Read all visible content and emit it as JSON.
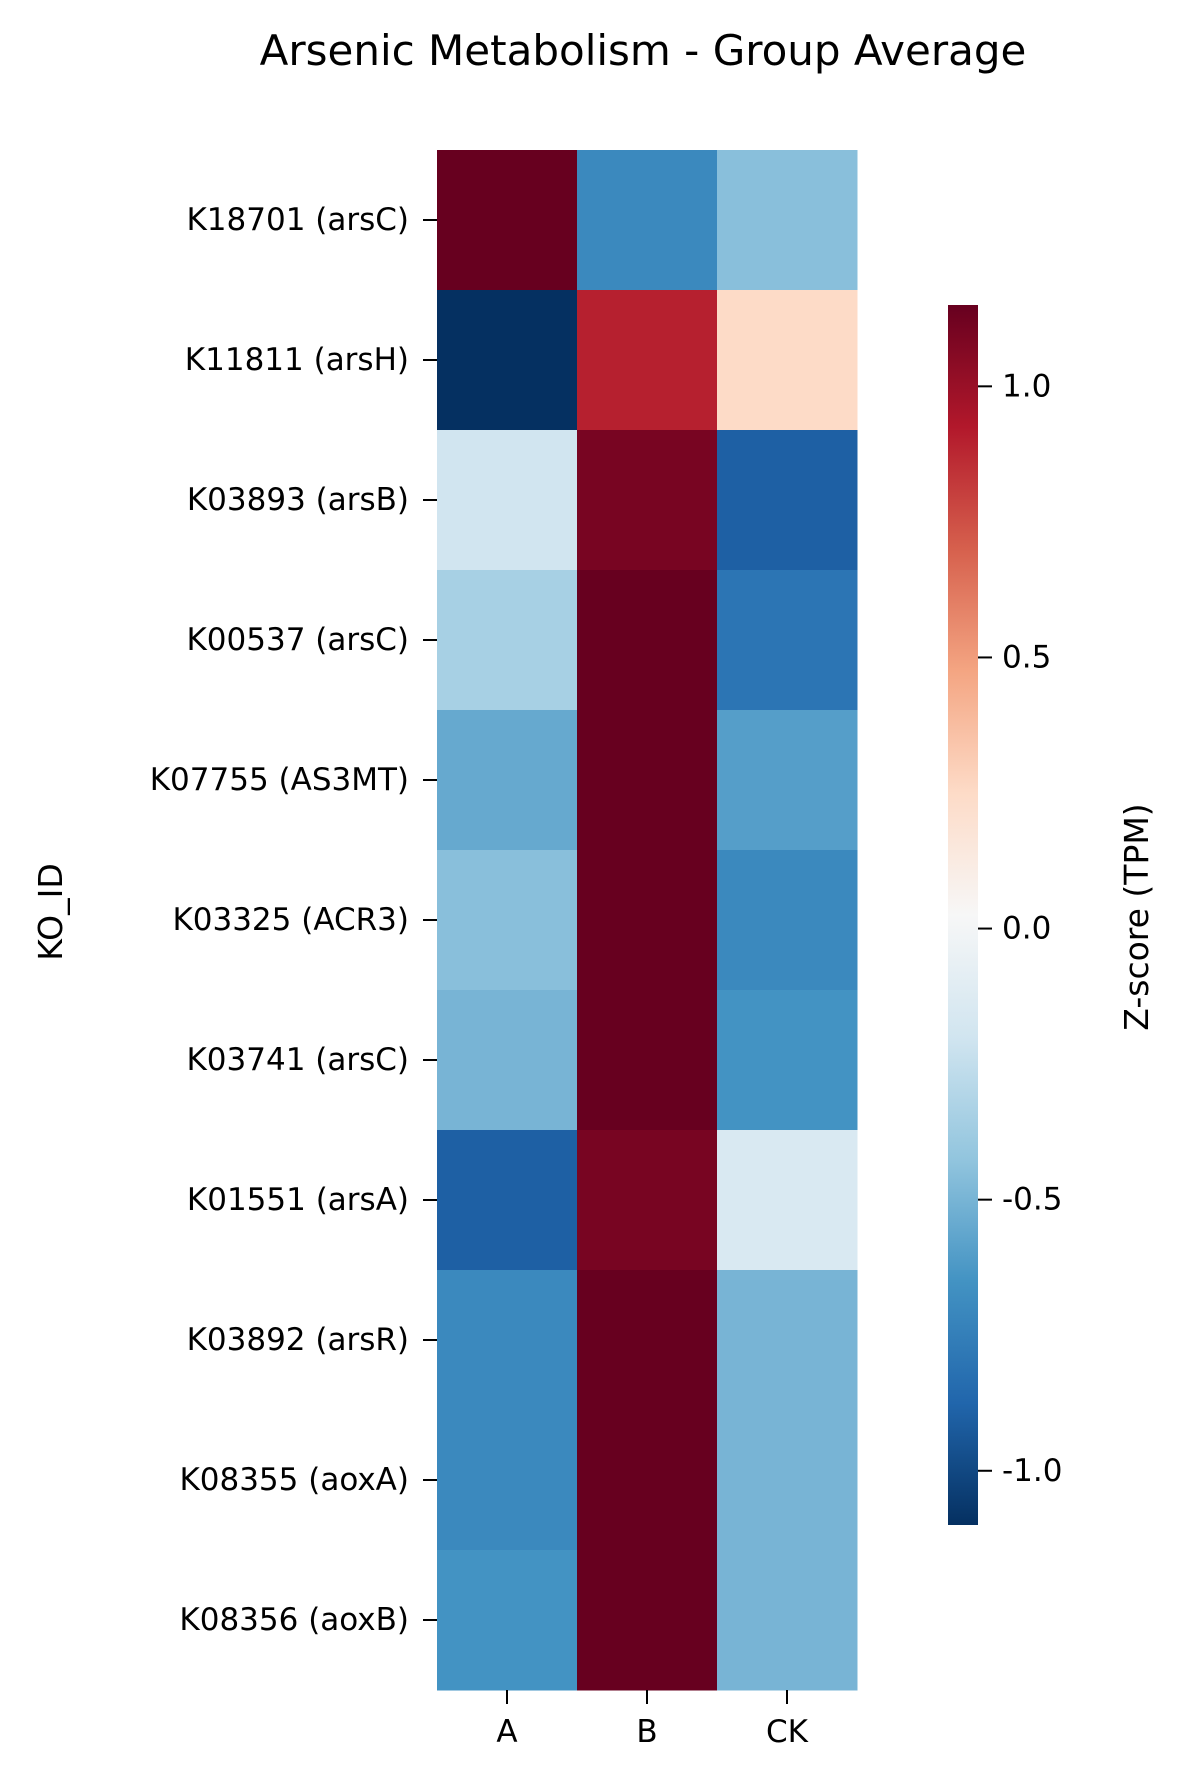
{
  "chart_data": {
    "type": "heatmap",
    "title": "Arsenic Metabolism - Group Average",
    "ylabel": "KO_ID",
    "xlabel": "",
    "columns": [
      "A",
      "B",
      "CK"
    ],
    "rows": [
      "K18701 (arsC)",
      "K11811 (arsH)",
      "K03893 (arsB)",
      "K00537 (arsC)",
      "K07755 (AS3MT)",
      "K03325 (ACR3)",
      "K03741 (arsC)",
      "K01551 (arsA)",
      "K03892 (arsR)",
      "K08355 (aoxA)",
      "K08356 (aoxB)"
    ],
    "values": [
      [
        1.15,
        -0.7,
        -0.45
      ],
      [
        -1.1,
        0.9,
        0.25
      ],
      [
        -0.2,
        1.1,
        -0.9
      ],
      [
        -0.35,
        1.15,
        -0.8
      ],
      [
        -0.55,
        1.15,
        -0.6
      ],
      [
        -0.45,
        1.15,
        -0.7
      ],
      [
        -0.5,
        1.15,
        -0.65
      ],
      [
        -0.9,
        1.1,
        -0.15
      ],
      [
        -0.7,
        1.15,
        -0.5
      ],
      [
        -0.7,
        1.15,
        -0.5
      ],
      [
        -0.65,
        1.15,
        -0.5
      ]
    ],
    "colorbar": {
      "label": "Z-score (TPM)",
      "vmin": -1.1,
      "vmax": 1.15,
      "ticks": [
        1.0,
        0.5,
        0.0,
        -0.5,
        -1.0
      ],
      "tick_labels": [
        "1.0",
        "0.5",
        "0.0",
        "-0.5",
        "-1.0"
      ],
      "colormap": "RdBu_r",
      "colors": [
        "#053061",
        "#2166ac",
        "#4393c3",
        "#92c5de",
        "#d1e5f0",
        "#f7f7f7",
        "#fddbc7",
        "#f4a582",
        "#d6604d",
        "#b2182b",
        "#67001f"
      ]
    }
  }
}
